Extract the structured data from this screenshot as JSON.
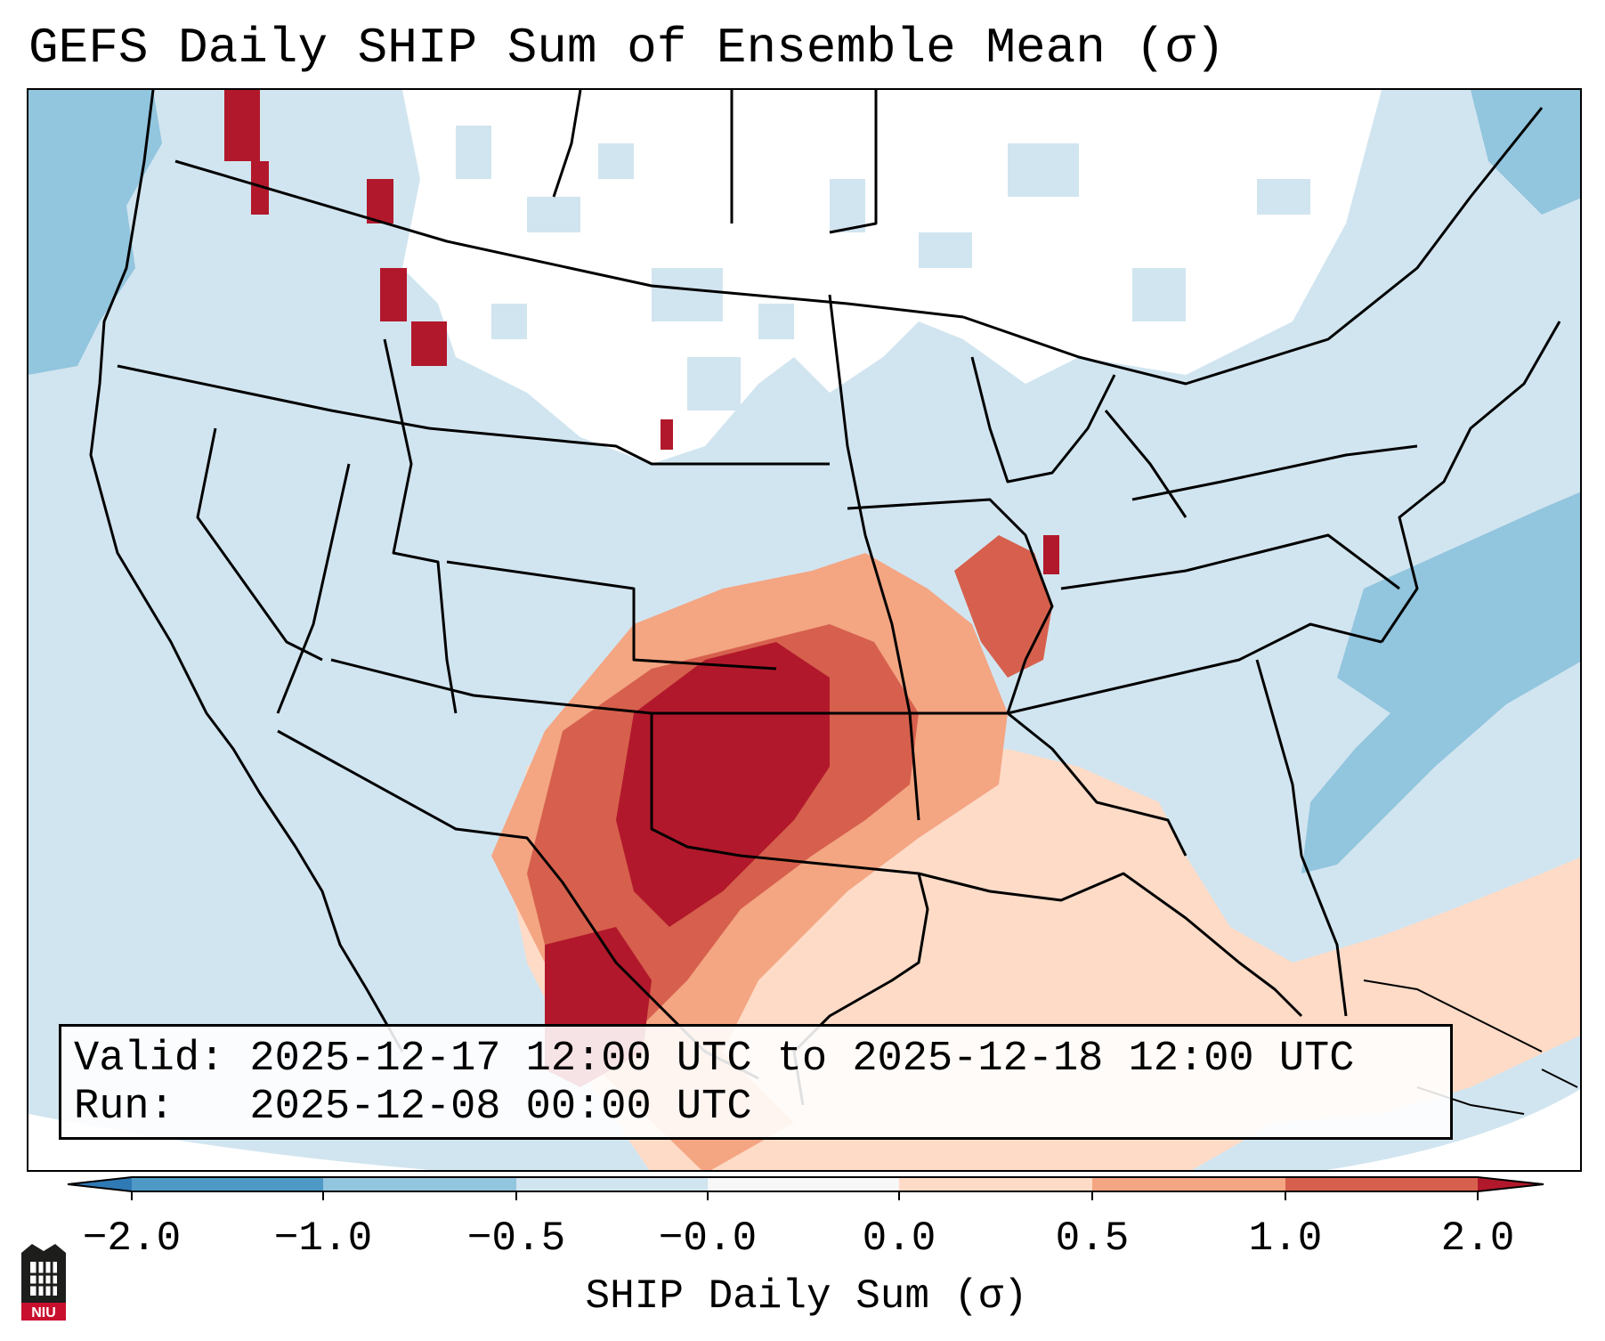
{
  "title": "GEFS Daily SHIP Sum of Ensemble Mean (σ)",
  "info": {
    "valid_line": "Valid: 2025-12-17 12:00 UTC to 2025-12-18 12:00 UTC",
    "run_line": "Run:   2025-12-08 00:00 UTC"
  },
  "colorbar": {
    "label": "SHIP Daily Sum (σ)",
    "ticks": [
      "-2.0",
      "-1.0",
      "-0.5",
      "-0.0",
      "0.0",
      "0.5",
      "1.0",
      "2.0"
    ],
    "colors": {
      "extend_low": "#2f79b5",
      "bin_m2_m1": "#4f99c6",
      "bin_m1_m05": "#92c5de",
      "bin_m05_m0": "#d1e5f0",
      "bin_0": "#f7f7f7",
      "bin_0_05": "#fddbc7",
      "bin_05_1": "#f4a582",
      "bin_1_2": "#d6604d",
      "extend_high": "#b2182b"
    }
  },
  "logo": {
    "text": "NIU",
    "icon": "niu-logo-icon"
  },
  "map": {
    "ocean_color": "#d1e5f0",
    "regions": [
      {
        "name": "pacific-anomaly",
        "level": "-1.0"
      },
      {
        "name": "atlantic-anomaly",
        "level": "-1.0"
      },
      {
        "name": "northern-plains-neutral",
        "level": "-0.0"
      },
      {
        "name": "great-lakes-neutral",
        "level": "-0.0"
      },
      {
        "name": "southern-plains-high",
        "level": "2.0"
      },
      {
        "name": "gulf-coast-elevated",
        "level": "0.5"
      }
    ]
  }
}
